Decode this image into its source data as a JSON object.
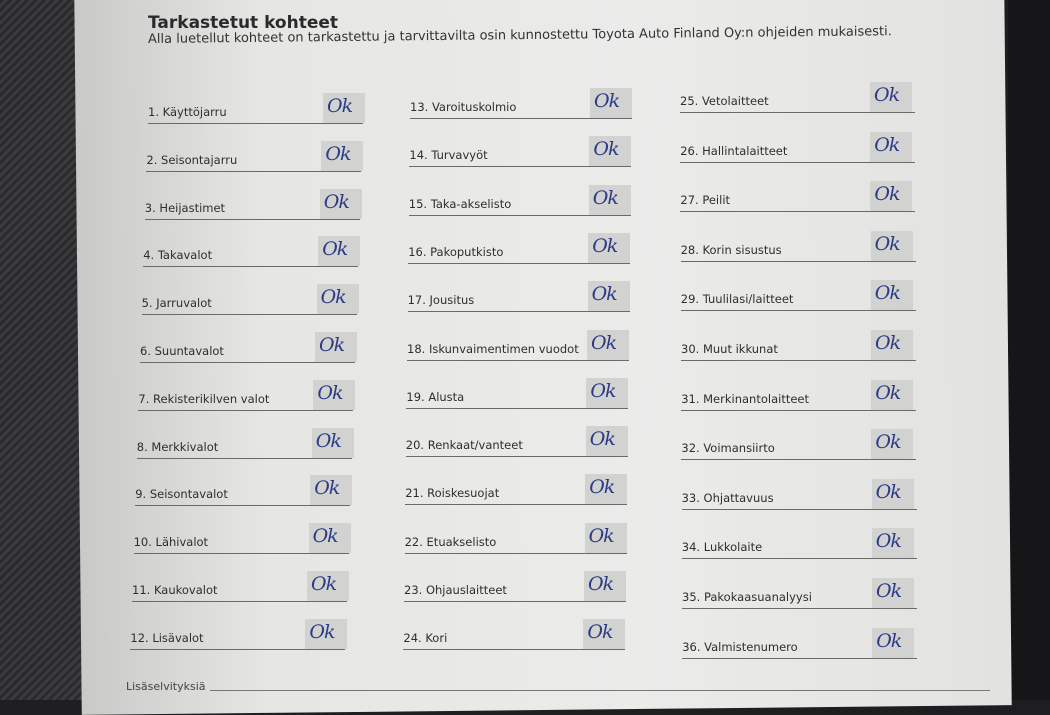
{
  "header": {
    "title": "Tarkastetut kohteet",
    "subtitle": "Alla luetellut kohteet on tarkastettu ja tarvittavilta osin kunnostettu Toyota Auto Finland Oy:n ohjeiden mukaisesti."
  },
  "columns": [
    {
      "items": [
        {
          "label": "1. Käyttöjarru",
          "mark": "Ok"
        },
        {
          "label": "2. Seisontajarru",
          "mark": "Ok"
        },
        {
          "label": "3. Heijastimet",
          "mark": "Ok"
        },
        {
          "label": "4. Takavalot",
          "mark": "Ok"
        },
        {
          "label": "5. Jarruvalot",
          "mark": "Ok"
        },
        {
          "label": "6. Suuntavalot",
          "mark": "Ok"
        },
        {
          "label": "7. Rekisterikilven valot",
          "mark": "Ok"
        },
        {
          "label": "8. Merkkivalot",
          "mark": "Ok"
        },
        {
          "label": "9. Seisontavalot",
          "mark": "Ok"
        },
        {
          "label": "10. Lähivalot",
          "mark": "Ok"
        },
        {
          "label": "11. Kaukovalot",
          "mark": "Ok"
        },
        {
          "label": "12. Lisävalot",
          "mark": "Ok"
        }
      ]
    },
    {
      "items": [
        {
          "label": "13. Varoituskolmio",
          "mark": "Ok"
        },
        {
          "label": "14. Turvavyöt",
          "mark": "Ok"
        },
        {
          "label": "15. Taka-akselisto",
          "mark": "Ok"
        },
        {
          "label": "16. Pakoputkisto",
          "mark": "Ok"
        },
        {
          "label": "17. Jousitus",
          "mark": "Ok"
        },
        {
          "label": "18. Iskunvaimentimen vuodot",
          "mark": "Ok"
        },
        {
          "label": "19. Alusta",
          "mark": "Ok"
        },
        {
          "label": "20. Renkaat/vanteet",
          "mark": "Ok"
        },
        {
          "label": "21. Roiskesuojat",
          "mark": "Ok"
        },
        {
          "label": "22. Etuakselisto",
          "mark": "Ok"
        },
        {
          "label": "23. Ohjauslaitteet",
          "mark": "Ok"
        },
        {
          "label": "24. Kori",
          "mark": "Ok"
        }
      ]
    },
    {
      "items": [
        {
          "label": "25. Vetolaitteet",
          "mark": "Ok"
        },
        {
          "label": "26. Hallintalaitteet",
          "mark": "Ok"
        },
        {
          "label": "27. Peilit",
          "mark": "Ok"
        },
        {
          "label": "28. Korin sisustus",
          "mark": "Ok"
        },
        {
          "label": "29. Tuulilasi/laitteet",
          "mark": "Ok"
        },
        {
          "label": "30. Muut ikkunat",
          "mark": "Ok"
        },
        {
          "label": "31. Merkinantolaitteet",
          "mark": "Ok"
        },
        {
          "label": "32. Voimansiirto",
          "mark": "Ok"
        },
        {
          "label": "33. Ohjattavuus",
          "mark": "Ok"
        },
        {
          "label": "34. Lukkolaite",
          "mark": "Ok"
        },
        {
          "label": "35. Pakokaasuanalyysi",
          "mark": "Ok"
        },
        {
          "label": "36. Valmistenumero",
          "mark": "Ok"
        }
      ]
    }
  ],
  "footer": {
    "label": "Lisäselvityksiä"
  },
  "colors": {
    "ink": "#2b3b86"
  }
}
